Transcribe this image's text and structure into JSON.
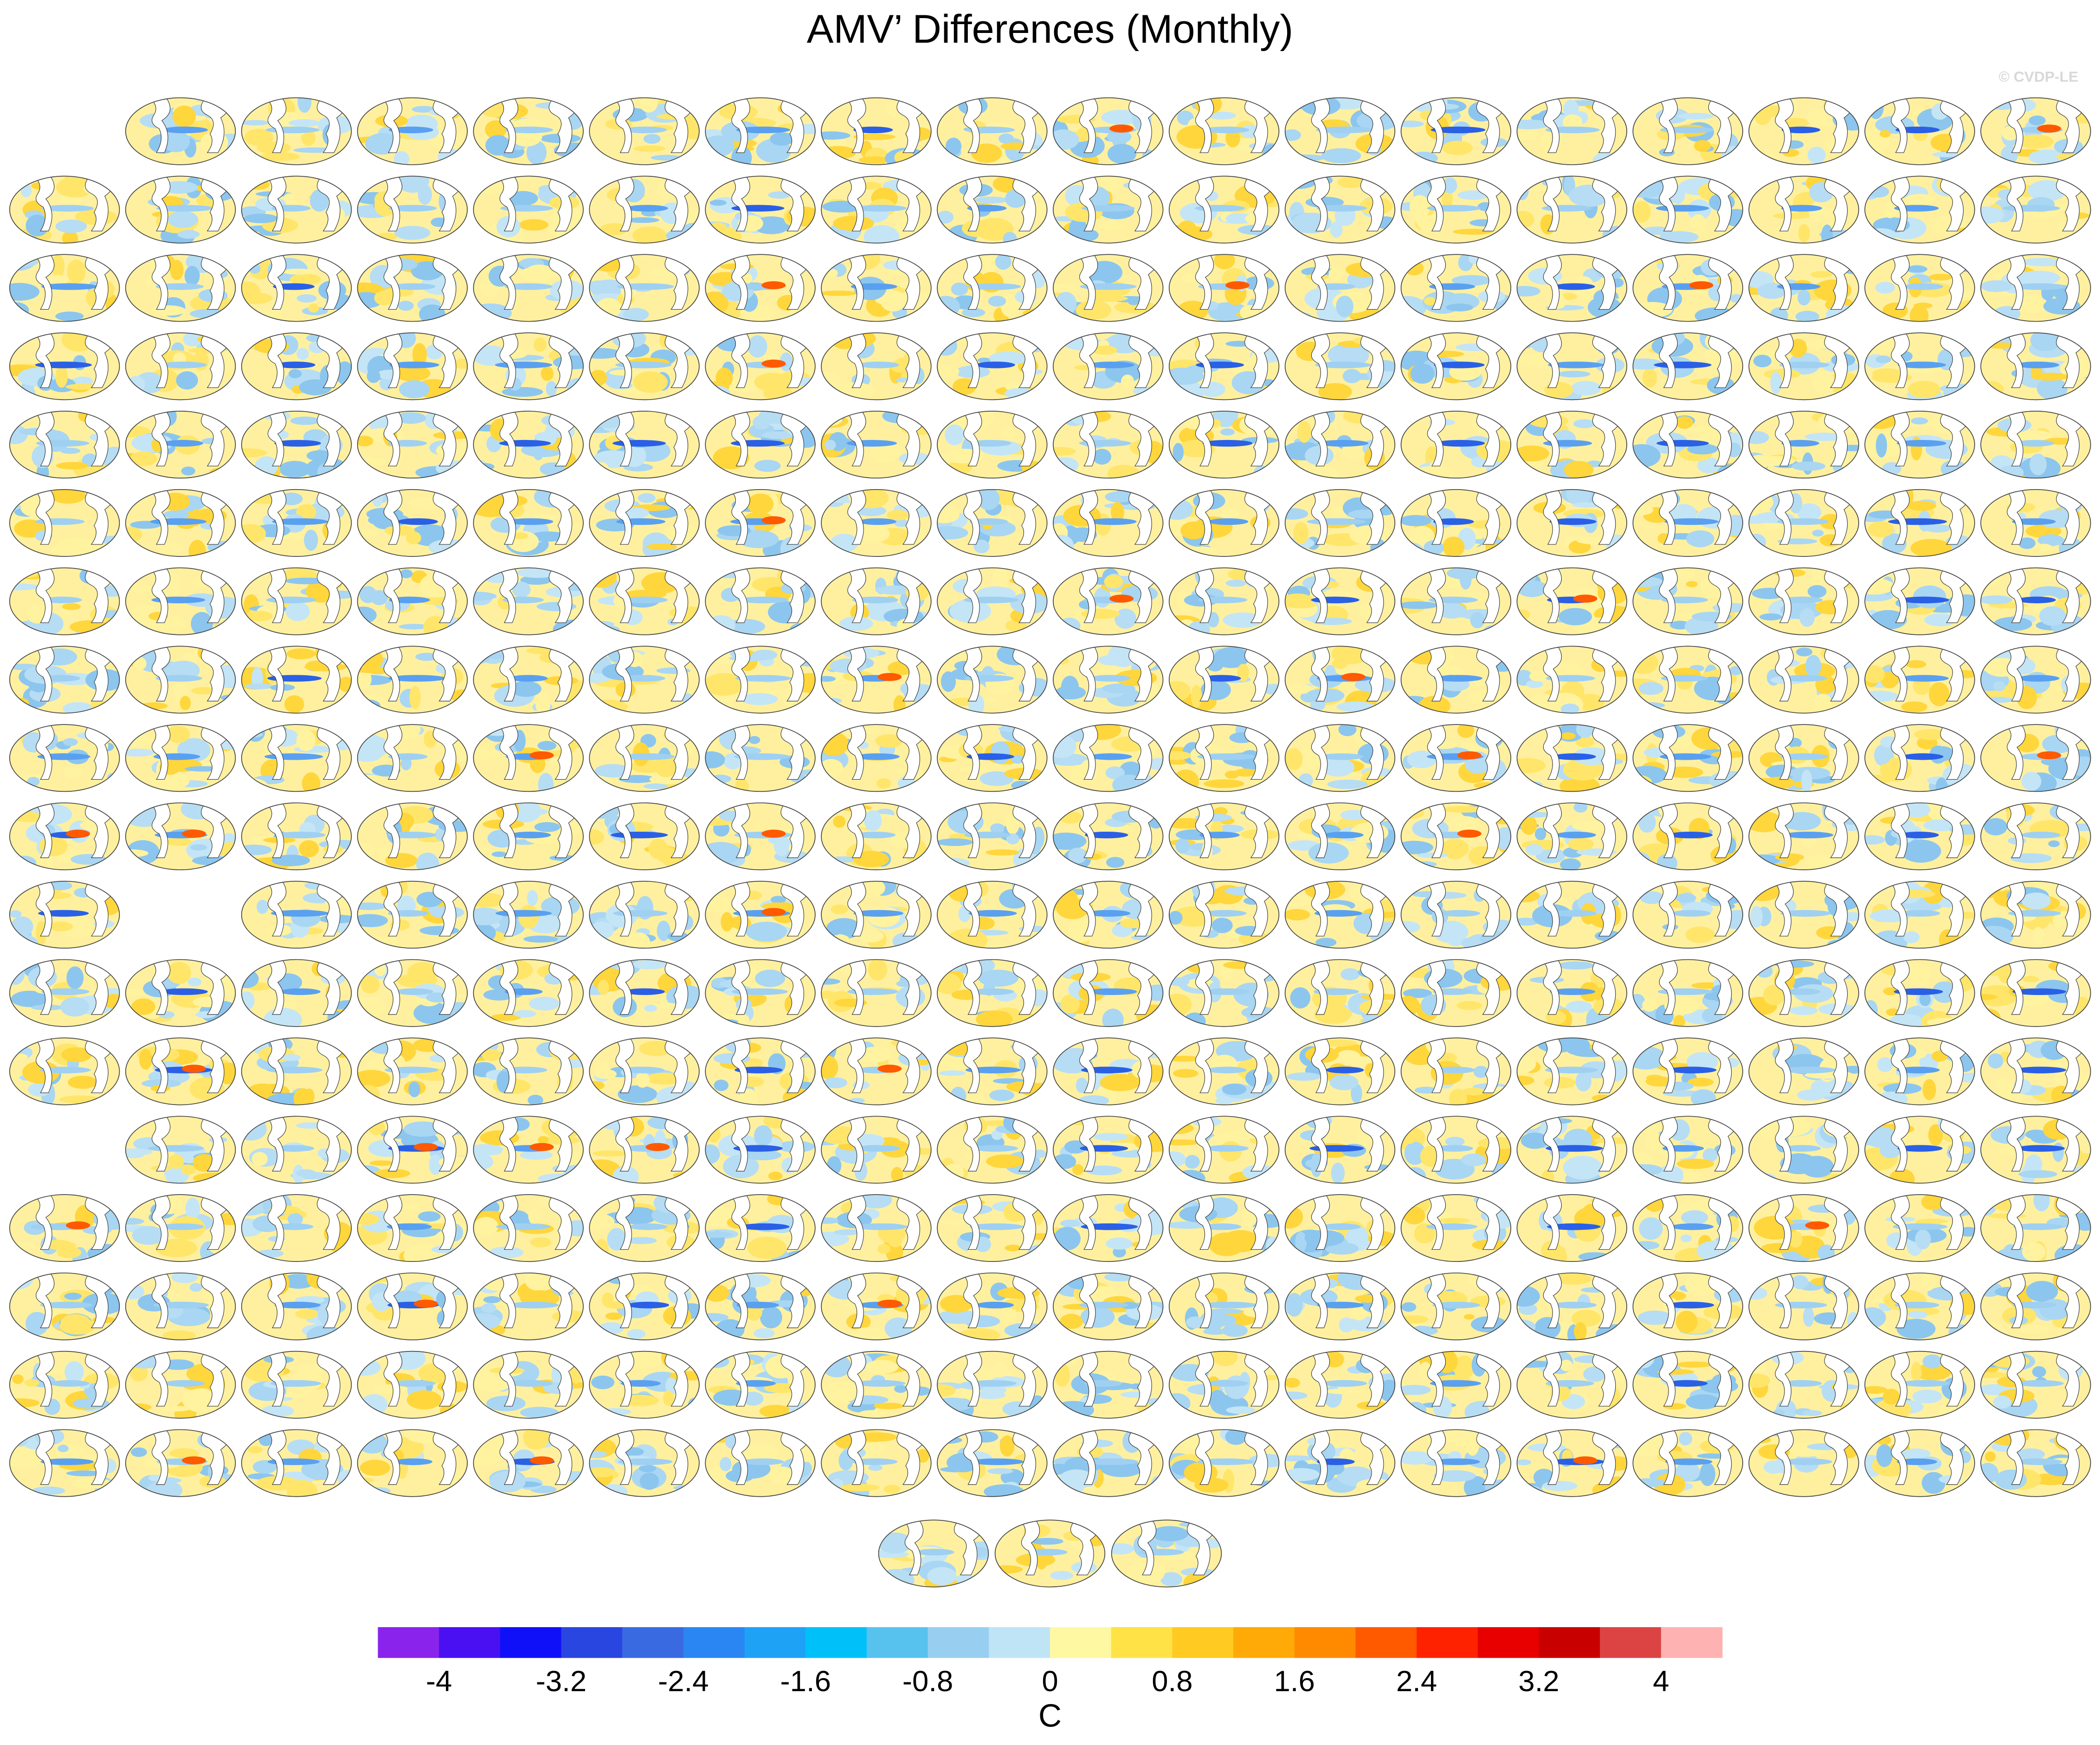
{
  "chart_data": {
    "type": "colorbar",
    "title": "AMV’ Differences (Monthly)",
    "watermark": "© CVDP-LE",
    "xlabel": "C",
    "xlim": [
      -4.4,
      4.4
    ],
    "xticks": [
      -4,
      -3.2,
      -2.4,
      -1.6,
      -0.8,
      0,
      0.8,
      1.6,
      2.4,
      3.2,
      4
    ],
    "colors": [
      "#8a24ec",
      "#4a10f2",
      "#1010f8",
      "#2a46e0",
      "#3a6ae2",
      "#2a86f2",
      "#1ea2f6",
      "#00c0fa",
      "#58c2ee",
      "#98cff0",
      "#bfe4f6",
      "#fff8a2",
      "#ffe246",
      "#ffca22",
      "#ffaa06",
      "#ff8a00",
      "#ff5a00",
      "#ff2200",
      "#e80000",
      "#c80000",
      "#dc4444",
      "#ffb2b2"
    ]
  }
}
